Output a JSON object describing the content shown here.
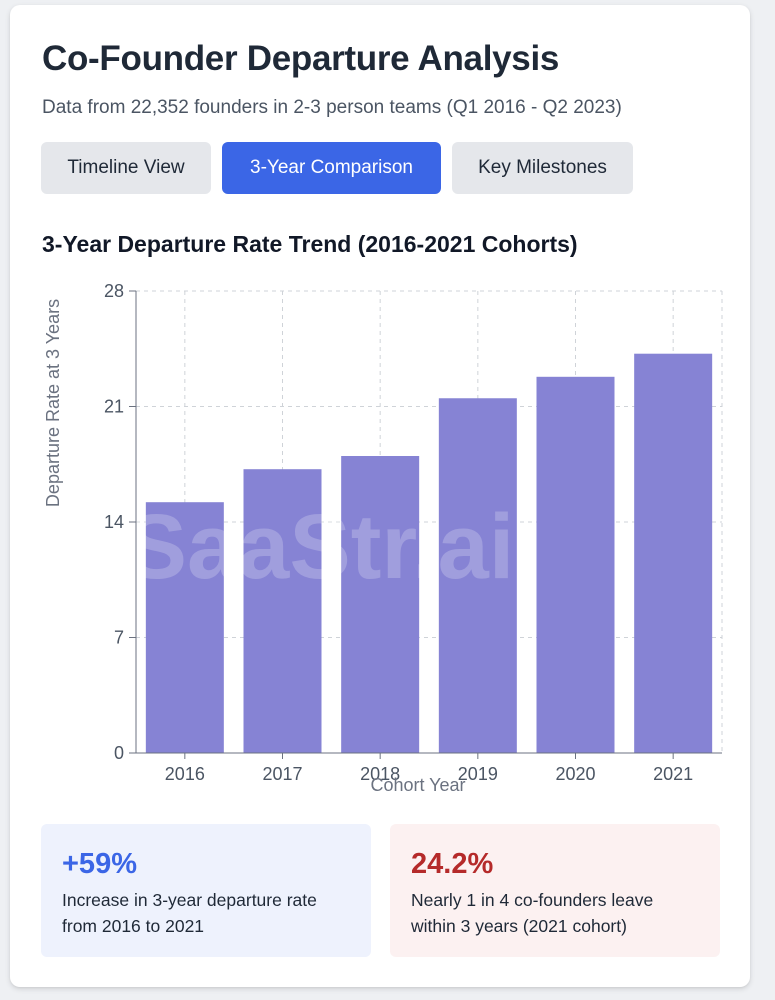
{
  "header": {
    "title": "Co-Founder Departure Analysis",
    "subtitle": "Data from 22,352 founders in 2-3 person teams (Q1 2016 - Q2 2023)"
  },
  "tabs": [
    {
      "label": "Timeline View",
      "active": false
    },
    {
      "label": "3-Year Comparison",
      "active": true
    },
    {
      "label": "Key Milestones",
      "active": false
    }
  ],
  "chart_title": "3-Year Departure Rate Trend (2016-2021 Cohorts)",
  "watermark": "SaaStr.ai",
  "chart_data": {
    "type": "bar",
    "categories": [
      "2016",
      "2017",
      "2018",
      "2019",
      "2020",
      "2021"
    ],
    "values": [
      15.2,
      17.2,
      18.0,
      21.5,
      22.8,
      24.2
    ],
    "xlabel": "Cohort Year",
    "ylabel": "Departure Rate at 3 Years",
    "ylim": [
      0,
      28
    ],
    "yticks": [
      0,
      7,
      14,
      21,
      28
    ],
    "grid": true,
    "bar_color": "#8683d4"
  },
  "stats": [
    {
      "value": "+59%",
      "description": "Increase in 3-year departure rate from 2016 to 2021"
    },
    {
      "value": "24.2%",
      "description": "Nearly 1 in 4 co-founders leave within 3 years (2021 cohort)"
    }
  ]
}
